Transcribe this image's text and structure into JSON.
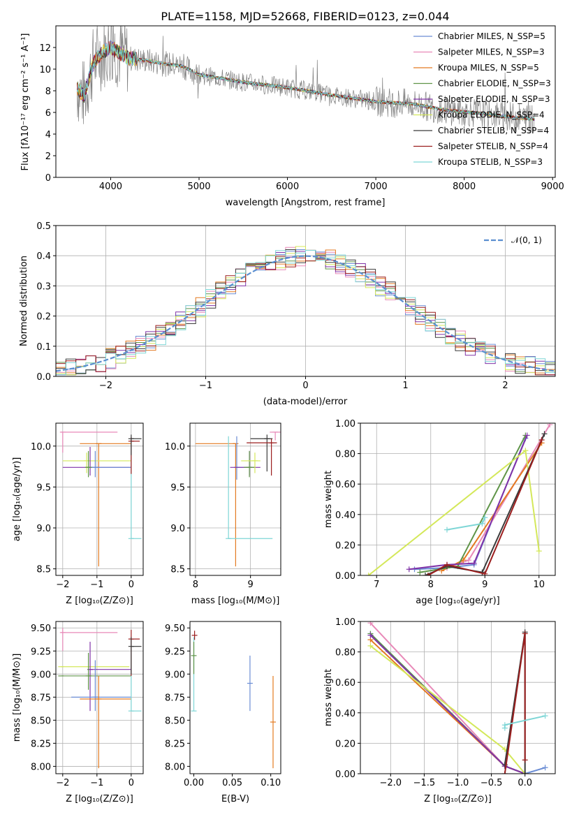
{
  "title": "PLATE=1158, MJD=52668, FIBERID=0123, z=0.044",
  "chart_data": [
    {
      "id": "spectrum",
      "type": "line",
      "title": "PLATE=1158, MJD=52668, FIBERID=0123, z=0.044",
      "xlabel": "wavelength [Angstrom, rest frame]",
      "ylabel": "Flux [fλ10⁻¹⁷ erg cm⁻² s⁻¹ A⁻¹]",
      "xlim": [
        3380,
        9030
      ],
      "ylim": [
        0,
        14
      ],
      "xticks": [
        4000,
        5000,
        6000,
        7000,
        8000,
        9000
      ],
      "yticks": [
        0,
        2,
        4,
        6,
        8,
        10,
        12
      ],
      "legend_position": "upper-right",
      "data_color": "#808080",
      "continuum": {
        "x": [
          3620,
          3700,
          3800,
          3900,
          4000,
          4200,
          4400,
          4600,
          4800,
          5000,
          5500,
          6000,
          6500,
          7000,
          7400,
          7800,
          8200,
          8600,
          8800
        ],
        "y": [
          8.3,
          7.5,
          10.5,
          11.5,
          12.0,
          11.0,
          10.8,
          10.5,
          10.3,
          9.5,
          8.8,
          8.3,
          7.6,
          7.0,
          6.8,
          6.2,
          5.9,
          5.5,
          5.4
        ]
      },
      "series": [
        {
          "name": "Chabrier MILES, N_SSP=5",
          "color": "#6a8cd4"
        },
        {
          "name": "Salpeter MILES, N_SSP=3",
          "color": "#e889b8"
        },
        {
          "name": "Kroupa MILES, N_SSP=5",
          "color": "#e37a20"
        },
        {
          "name": "Chabrier ELODIE, N_SSP=3",
          "color": "#5f9448"
        },
        {
          "name": "Salpeter ELODIE, N_SSP=3",
          "color": "#8033a8"
        },
        {
          "name": "Kroupa ELODIE, N_SSP=4",
          "color": "#d4e85a"
        },
        {
          "name": "Chabrier STELIB, N_SSP=4",
          "color": "#3b3b3b"
        },
        {
          "name": "Salpeter STELIB, N_SSP=4",
          "color": "#9b1e1e"
        },
        {
          "name": "Kroupa STELIB, N_SSP=3",
          "color": "#7ed6d6"
        }
      ]
    },
    {
      "id": "residuals",
      "type": "histogram",
      "xlabel": "(data-model)/error",
      "ylabel": "Normed distribution",
      "xlim": [
        -2.5,
        2.5
      ],
      "ylim": [
        0,
        0.5
      ],
      "xticks": [
        -2,
        -1,
        0,
        1,
        2
      ],
      "yticks": [
        0.0,
        0.1,
        0.2,
        0.3,
        0.4,
        0.5
      ],
      "grid": true,
      "legend": "𝒩(0, 1)",
      "legend_position": "upper-right",
      "gaussian_color": "#5b8fd0"
    },
    {
      "id": "age-vs-Z",
      "type": "errorbar",
      "xlabel": "Z [log₁₀(Z/Z⊙)]",
      "ylabel": "age  [log₁₀(age/yr)]",
      "xlim": [
        -2.2,
        0.35
      ],
      "ylim": [
        8.42,
        10.28
      ],
      "xticks": [
        -2,
        -1,
        0
      ],
      "yticks": [
        8.5,
        9.0,
        9.5,
        10.0
      ],
      "grid": true,
      "points": [
        {
          "c": "#e889b8",
          "x": -2.0,
          "xerr": [
            0.05,
            1.6
          ],
          "y": 10.17,
          "yerr": [
            0.25,
            0.0
          ]
        },
        {
          "c": "#e37a20",
          "x": -0.95,
          "xerr": [
            0.55,
            0.95
          ],
          "y": 10.03,
          "yerr": [
            1.5,
            0.0
          ]
        },
        {
          "c": "#d4e85a",
          "x": -1.3,
          "xerr": [
            0.7,
            1.3
          ],
          "y": 9.82,
          "yerr": [
            0.15,
            0.1
          ]
        },
        {
          "c": "#8033a8",
          "x": -1.2,
          "xerr": [
            0.8,
            1.2
          ],
          "y": 9.74,
          "yerr": [
            0.1,
            0.25
          ]
        },
        {
          "c": "#6a8cd4",
          "x": -1.05,
          "xerr": [
            0.15,
            1.05
          ],
          "y": 9.74,
          "yerr": [
            0.12,
            0.2
          ]
        },
        {
          "c": "#5f9448",
          "x": -1.25,
          "xerr": [
            0.1,
            0.1
          ],
          "y": 9.74,
          "yerr": [
            0.12,
            0.2
          ]
        },
        {
          "c": "#7ed6d6",
          "x": 0.0,
          "xerr": [
            0.0,
            0.3
          ],
          "y": 8.87,
          "yerr": [
            0.0,
            1.2
          ]
        },
        {
          "c": "#9b1e1e",
          "x": 0.0,
          "xerr": [
            0.0,
            0.25
          ],
          "y": 10.06,
          "yerr": [
            0.4,
            0.05
          ]
        },
        {
          "c": "#3b3b3b",
          "x": 0.0,
          "xerr": [
            0.0,
            0.3
          ],
          "y": 10.09,
          "yerr": [
            0.2,
            0.05
          ]
        }
      ]
    },
    {
      "id": "age-vs-mass",
      "type": "errorbar",
      "xlabel": "mass [log₁₀(M/M⊙)]",
      "ylabel": "",
      "xlim": [
        7.9,
        9.55
      ],
      "ylim": [
        8.42,
        10.28
      ],
      "xticks": [
        8,
        9
      ],
      "yticks": [
        8.5,
        9.0,
        9.5,
        10.0
      ],
      "grid": true,
      "points": [
        {
          "c": "#e37a20",
          "x": 8.73,
          "xerr": [
            0.73,
            0.0
          ],
          "y": 10.03,
          "yerr": [
            1.5,
            0.0
          ]
        },
        {
          "c": "#7ed6d6",
          "x": 8.6,
          "xerr": [
            0.0,
            0.8
          ],
          "y": 8.87,
          "yerr": [
            0.0,
            1.25
          ]
        },
        {
          "c": "#6a8cd4",
          "x": 8.75,
          "xerr": [
            0.0,
            0.25
          ],
          "y": 9.74,
          "yerr": [
            0.15,
            0.38
          ]
        },
        {
          "c": "#8033a8",
          "x": 8.98,
          "xerr": [
            0.35,
            0.2
          ],
          "y": 9.74,
          "yerr": [
            0.1,
            0.2
          ]
        },
        {
          "c": "#5f9448",
          "x": 8.98,
          "xerr": [
            0.1,
            0.1
          ],
          "y": 9.74,
          "yerr": [
            0.12,
            0.2
          ]
        },
        {
          "c": "#d4e85a",
          "x": 9.08,
          "xerr": [
            0.25,
            0.1
          ],
          "y": 9.82,
          "yerr": [
            0.15,
            0.1
          ]
        },
        {
          "c": "#3b3b3b",
          "x": 9.3,
          "xerr": [
            0.3,
            0.1
          ],
          "y": 10.09,
          "yerr": [
            0.4,
            0.05
          ]
        },
        {
          "c": "#9b1e1e",
          "x": 9.38,
          "xerr": [
            0.45,
            0.1
          ],
          "y": 10.04,
          "yerr": [
            0.4,
            0.05
          ]
        },
        {
          "c": "#e889b8",
          "x": 9.45,
          "xerr": [
            0.1,
            0.1
          ],
          "y": 10.17,
          "yerr": [
            0.1,
            0.0
          ]
        }
      ]
    },
    {
      "id": "massweight-vs-age",
      "type": "line",
      "xlabel": "age  [log₁₀(age/yr)]",
      "ylabel": "mass weight",
      "xlim": [
        6.7,
        10.3
      ],
      "ylim": [
        0,
        1
      ],
      "xticks": [
        7,
        8,
        9,
        10
      ],
      "yticks": [
        0.0,
        0.2,
        0.4,
        0.6,
        0.8,
        1.0
      ],
      "grid": true,
      "series": [
        {
          "c": "#6a8cd4",
          "x": [
            7.7,
            8.3,
            8.8,
            9.75
          ],
          "y": [
            0.04,
            0.05,
            0.07,
            0.9
          ]
        },
        {
          "c": "#e889b8",
          "x": [
            8.3,
            8.7,
            10.2
          ],
          "y": [
            0.05,
            0.1,
            0.99
          ]
        },
        {
          "c": "#e37a20",
          "x": [
            8.2,
            8.6,
            10.05
          ],
          "y": [
            0.03,
            0.1,
            0.87
          ]
        },
        {
          "c": "#5f9448",
          "x": [
            7.8,
            8.5,
            9.75
          ],
          "y": [
            0.02,
            0.06,
            0.92
          ]
        },
        {
          "c": "#8033a8",
          "x": [
            7.6,
            8.3,
            8.8,
            9.78
          ],
          "y": [
            0.04,
            0.07,
            0.08,
            0.92
          ]
        },
        {
          "c": "#d4e85a",
          "x": [
            6.85,
            9.75,
            10.0
          ],
          "y": [
            0.0,
            0.82,
            0.16
          ]
        },
        {
          "c": "#3b3b3b",
          "x": [
            7.9,
            8.3,
            8.95,
            10.1
          ],
          "y": [
            0.0,
            0.06,
            0.02,
            0.93
          ]
        },
        {
          "c": "#9b1e1e",
          "x": [
            7.95,
            8.3,
            9.0,
            10.05
          ],
          "y": [
            0.0,
            0.07,
            0.01,
            0.89
          ]
        },
        {
          "c": "#7ed6d6",
          "x": [
            8.3,
            8.95,
            9.0
          ],
          "y": [
            0.3,
            0.34,
            0.38
          ]
        }
      ]
    },
    {
      "id": "mass-vs-Z",
      "type": "errorbar",
      "xlabel": "Z [log₁₀(Z/Z⊙)]",
      "ylabel": "mass [log₁₀(M/M⊙)]",
      "xlim": [
        -2.2,
        0.35
      ],
      "ylim": [
        7.92,
        9.57
      ],
      "xticks": [
        -2,
        -1,
        0
      ],
      "yticks": [
        8.0,
        8.25,
        8.5,
        8.75,
        9.0,
        9.25,
        9.5
      ],
      "grid": true,
      "points": [
        {
          "c": "#e889b8",
          "x": -2.0,
          "xerr": [
            0.05,
            1.6
          ],
          "y": 9.45,
          "yerr": [
            0.2,
            0.05
          ]
        },
        {
          "c": "#5f9448",
          "x": -2.05,
          "xerr": [
            0.0,
            2.05
          ],
          "y": 8.98,
          "yerr": [
            0.0,
            0.0
          ]
        },
        {
          "c": "#d4e85a",
          "x": -2.05,
          "xerr": [
            0.0,
            2.0
          ],
          "y": 9.08,
          "yerr": [
            0.0,
            0.0
          ]
        },
        {
          "c": "#8033a8",
          "x": -1.2,
          "xerr": [
            0.0,
            1.2
          ],
          "y": 9.05,
          "yerr": [
            0.45,
            0.3
          ]
        },
        {
          "c": "#6a8cd4",
          "x": -1.05,
          "xerr": [
            0.7,
            1.05
          ],
          "y": 8.75,
          "yerr": [
            0.15,
            0.4
          ]
        },
        {
          "c": "#5f9448",
          "x": -1.25,
          "xerr": [
            0.0,
            0.1
          ],
          "y": 8.98,
          "yerr": [
            0.15,
            0.25
          ]
        },
        {
          "c": "#e37a20",
          "x": -0.95,
          "xerr": [
            0.55,
            0.95
          ],
          "y": 8.73,
          "yerr": [
            0.75,
            0.25
          ]
        },
        {
          "c": "#7ed6d6",
          "x": 0.0,
          "xerr": [
            0.0,
            0.3
          ],
          "y": 8.6,
          "yerr": [
            0.0,
            0.8
          ]
        },
        {
          "c": "#9b1e1e",
          "x": 0.0,
          "xerr": [
            0.0,
            0.25
          ],
          "y": 9.38,
          "yerr": [
            0.4,
            0.1
          ]
        },
        {
          "c": "#3b3b3b",
          "x": 0.0,
          "xerr": [
            0.0,
            0.3
          ],
          "y": 9.3,
          "yerr": [
            0.3,
            0.1
          ]
        }
      ]
    },
    {
      "id": "mass-vs-EBV",
      "type": "errorbar",
      "xlabel": "E(B-V)",
      "ylabel": "",
      "xlim": [
        -0.005,
        0.113
      ],
      "ylim": [
        7.92,
        9.57
      ],
      "xticks": [
        0.0,
        0.05,
        0.1
      ],
      "yticks": [
        8.0,
        8.25,
        8.5,
        8.75,
        9.0,
        9.25,
        9.5
      ],
      "grid": false,
      "points": [
        {
          "c": "#7ed6d6",
          "x": 0.0,
          "y": 8.6,
          "yerr": [
            0.0,
            0.8
          ]
        },
        {
          "c": "#5f9448",
          "x": 0.0,
          "y": 9.2,
          "yerr": [
            0.2,
            0.15
          ]
        },
        {
          "c": "#9b1e1e",
          "x": 0.001,
          "y": 9.42,
          "yerr": [
            0.05,
            0.05
          ]
        },
        {
          "c": "#6a8cd4",
          "x": 0.073,
          "y": 8.9,
          "yerr": [
            0.3,
            0.3
          ]
        },
        {
          "c": "#e37a20",
          "x": 0.103,
          "y": 8.48,
          "yerr": [
            0.5,
            0.5
          ]
        }
      ]
    },
    {
      "id": "massweight-vs-Z",
      "type": "line",
      "xlabel": "Z [log₁₀(Z/Z⊙)]",
      "ylabel": "mass weight",
      "xlim": [
        -2.45,
        0.45
      ],
      "ylim": [
        0,
        1
      ],
      "xticks": [
        -2.0,
        -1.5,
        -1.0,
        -0.5,
        0.0
      ],
      "yticks": [
        0.0,
        0.2,
        0.4,
        0.6,
        0.8,
        1.0
      ],
      "grid": true,
      "series": [
        {
          "c": "#6a8cd4",
          "x": [
            -2.3,
            -0.3,
            0.0,
            0.3
          ],
          "y": [
            0.92,
            0.05,
            0.0,
            0.04
          ]
        },
        {
          "c": "#e889b8",
          "x": [
            -2.3,
            -0.3,
            0.0
          ],
          "y": [
            0.99,
            0.05,
            0.0
          ]
        },
        {
          "c": "#e37a20",
          "x": [
            -2.3,
            -0.3,
            0.0
          ],
          "y": [
            0.88,
            0.05,
            0.0
          ]
        },
        {
          "c": "#5f9448",
          "x": [
            -2.3,
            -0.3,
            0.0
          ],
          "y": [
            0.92,
            0.05,
            0.0
          ]
        },
        {
          "c": "#8033a8",
          "x": [
            -2.3,
            -0.3,
            0.0
          ],
          "y": [
            0.91,
            0.05,
            0.0
          ]
        },
        {
          "c": "#d4e85a",
          "x": [
            -2.3,
            -0.3,
            0.0
          ],
          "y": [
            0.84,
            0.16,
            0.0
          ]
        },
        {
          "c": "#3b3b3b",
          "x": [
            -0.3,
            0.0,
            0.0
          ],
          "y": [
            0.06,
            0.93,
            0.0
          ]
        },
        {
          "c": "#9b1e1e",
          "x": [
            -0.3,
            0.0,
            0.0
          ],
          "y": [
            0.0,
            0.92,
            0.09
          ]
        },
        {
          "c": "#7ed6d6",
          "x": [
            -0.3,
            -0.3,
            0.3
          ],
          "y": [
            0.3,
            0.32,
            0.38
          ]
        }
      ]
    }
  ]
}
